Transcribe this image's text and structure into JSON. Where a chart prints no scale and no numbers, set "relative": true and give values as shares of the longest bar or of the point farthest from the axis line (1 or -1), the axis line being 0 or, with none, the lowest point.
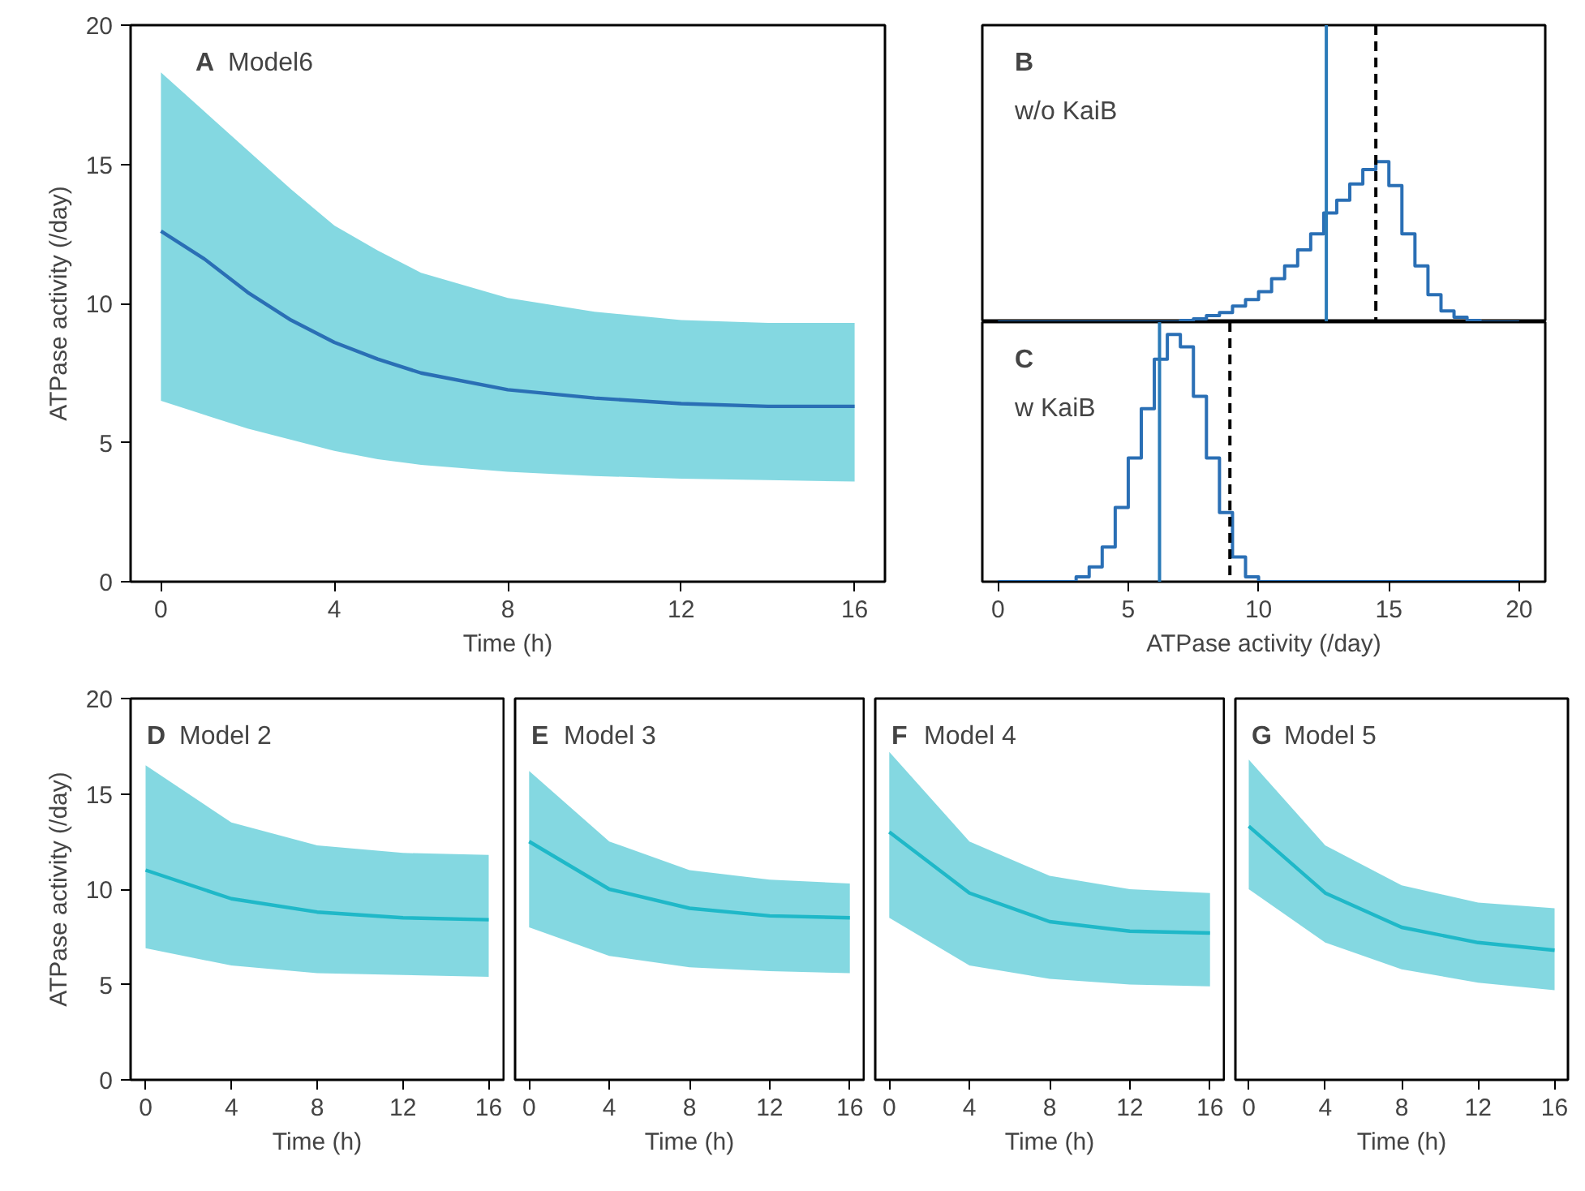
{
  "chart_data": [
    {
      "type": "line",
      "annotations": [
        "A",
        "Model6"
      ],
      "xlabel": "Time (h)",
      "ylabel": "ATPase activity (/day)",
      "xlim": [
        -0.7,
        16.7
      ],
      "ylim": [
        0,
        20
      ],
      "xticks": [
        0,
        4,
        8,
        12,
        16
      ],
      "yticks": [
        0,
        5,
        10,
        15,
        20
      ],
      "series": [
        {
          "color": "#2a6fb5",
          "x": [
            0,
            1,
            2,
            3,
            4,
            5,
            6,
            8,
            10,
            12,
            14,
            16
          ],
          "values": [
            12.6,
            11.6,
            10.4,
            9.4,
            8.6,
            8.0,
            7.5,
            6.9,
            6.6,
            6.4,
            6.3,
            6.3
          ],
          "lower": [
            6.5,
            6.0,
            5.5,
            5.1,
            4.7,
            4.4,
            4.2,
            3.95,
            3.8,
            3.7,
            3.65,
            3.6
          ],
          "upper": [
            18.3,
            16.9,
            15.5,
            14.1,
            12.8,
            11.9,
            11.1,
            10.2,
            9.7,
            9.4,
            9.3,
            9.3
          ]
        }
      ]
    },
    {
      "type": "step",
      "relative": true,
      "annotations": [
        "B",
        "w/o KaiB"
      ],
      "xlim": [
        -0.6,
        21
      ],
      "xticks": [
        0,
        5,
        10,
        15,
        20
      ],
      "tick_labels": false,
      "color": "#2a6fb5",
      "x": [
        0,
        7.0,
        7.5,
        8.0,
        8.5,
        9.0,
        9.5,
        10.0,
        10.5,
        11.0,
        11.5,
        12.0,
        12.5,
        13.0,
        13.5,
        14.0,
        14.5,
        15.0,
        15.5,
        16.0,
        16.5,
        17.0,
        17.5,
        18.0,
        18.5,
        19.0,
        20
      ],
      "values": [
        0,
        0.01,
        0.02,
        0.04,
        0.06,
        0.1,
        0.14,
        0.19,
        0.27,
        0.35,
        0.45,
        0.55,
        0.68,
        0.76,
        0.86,
        0.95,
        1.0,
        0.85,
        0.55,
        0.35,
        0.17,
        0.07,
        0.03,
        0.01,
        0.0,
        0,
        0
      ],
      "ref_lines": [
        {
          "axis": "x",
          "value": 12.6,
          "color": "#2a7ab8",
          "line_style": "solid"
        },
        {
          "axis": "x",
          "value": 14.5,
          "color": "#000000",
          "line_style": "dashed"
        }
      ]
    },
    {
      "type": "step",
      "relative": true,
      "annotations": [
        "C",
        "w KaiB"
      ],
      "xlabel": "ATPase activity (/day)",
      "xlim": [
        -0.6,
        21
      ],
      "xticks": [
        0,
        5,
        10,
        15,
        20
      ],
      "tick_labels": "x",
      "color": "#2a6fb5",
      "x": [
        0,
        3.0,
        3.5,
        4.0,
        4.5,
        5.0,
        5.5,
        6.0,
        6.5,
        7.0,
        7.5,
        8.0,
        8.5,
        9.0,
        9.5,
        10.0,
        20
      ],
      "values": [
        0,
        0.02,
        0.06,
        0.14,
        0.3,
        0.5,
        0.7,
        0.9,
        1.0,
        0.95,
        0.75,
        0.5,
        0.28,
        0.1,
        0.02,
        0,
        0
      ],
      "ref_lines": [
        {
          "axis": "x",
          "value": 6.2,
          "color": "#2a7ab8",
          "line_style": "solid"
        },
        {
          "axis": "x",
          "value": 8.9,
          "color": "#000000",
          "line_style": "dashed"
        }
      ]
    },
    {
      "type": "line",
      "annotations": [
        "D",
        "Model 2"
      ],
      "xlabel": "Time (h)",
      "ylabel": "ATPase activity (/day)",
      "xlim": [
        -0.7,
        16.7
      ],
      "ylim": [
        0,
        20
      ],
      "xticks": [
        0,
        4,
        8,
        12,
        16
      ],
      "yticks": [
        0,
        5,
        10,
        15,
        20
      ],
      "series": [
        {
          "color": "#1fb8c8",
          "x": [
            0,
            4,
            8,
            12,
            16
          ],
          "values": [
            11.0,
            9.5,
            8.8,
            8.5,
            8.4
          ],
          "lower": [
            6.9,
            6.0,
            5.6,
            5.5,
            5.4
          ],
          "upper": [
            16.5,
            13.5,
            12.3,
            11.9,
            11.8
          ]
        }
      ]
    },
    {
      "type": "line",
      "annotations": [
        "E",
        "Model 3"
      ],
      "xlabel": "Time (h)",
      "xlim": [
        -0.7,
        16.7
      ],
      "ylim": [
        0,
        20
      ],
      "xticks": [
        0,
        4,
        8,
        12,
        16
      ],
      "yticks": [
        0,
        5,
        10,
        15,
        20
      ],
      "tick_labels": "x",
      "series": [
        {
          "color": "#1fb8c8",
          "x": [
            0,
            4,
            8,
            12,
            16
          ],
          "values": [
            12.5,
            10.0,
            9.0,
            8.6,
            8.5
          ],
          "lower": [
            8.0,
            6.5,
            5.9,
            5.7,
            5.6
          ],
          "upper": [
            16.2,
            12.5,
            11.0,
            10.5,
            10.3
          ]
        }
      ]
    },
    {
      "type": "line",
      "annotations": [
        "F",
        "Model 4"
      ],
      "xlabel": "Time (h)",
      "xlim": [
        -0.7,
        16.7
      ],
      "ylim": [
        0,
        20
      ],
      "xticks": [
        0,
        4,
        8,
        12,
        16
      ],
      "yticks": [
        0,
        5,
        10,
        15,
        20
      ],
      "tick_labels": "x",
      "series": [
        {
          "color": "#1fb8c8",
          "x": [
            0,
            4,
            8,
            12,
            16
          ],
          "values": [
            13.0,
            9.8,
            8.3,
            7.8,
            7.7
          ],
          "lower": [
            8.5,
            6.0,
            5.3,
            5.0,
            4.9
          ],
          "upper": [
            17.2,
            12.5,
            10.7,
            10.0,
            9.8
          ]
        }
      ]
    },
    {
      "type": "line",
      "annotations": [
        "G",
        "Model 5"
      ],
      "xlabel": "Time (h)",
      "xlim": [
        -0.7,
        16.7
      ],
      "ylim": [
        0,
        20
      ],
      "xticks": [
        0,
        4,
        8,
        12,
        16
      ],
      "yticks": [
        0,
        5,
        10,
        15,
        20
      ],
      "tick_labels": "x",
      "series": [
        {
          "color": "#1fb8c8",
          "x": [
            0,
            4,
            8,
            12,
            16
          ],
          "values": [
            13.3,
            9.8,
            8.0,
            7.2,
            6.8
          ],
          "lower": [
            10.0,
            7.2,
            5.8,
            5.1,
            4.7
          ],
          "upper": [
            16.8,
            12.3,
            10.2,
            9.3,
            9.0
          ]
        }
      ]
    }
  ]
}
